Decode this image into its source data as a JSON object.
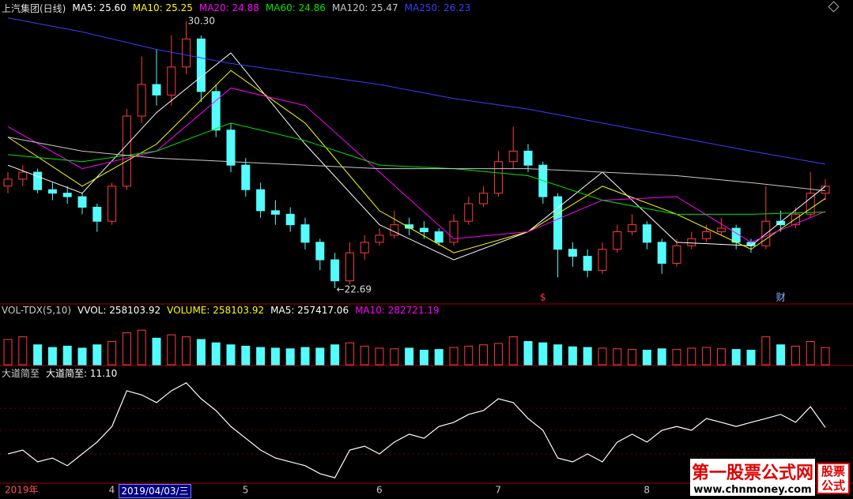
{
  "chart_data": [
    {
      "type": "candlestick",
      "title": "上汽集团(日线)",
      "categories": [
        "2019年",
        null,
        null,
        null,
        null,
        null,
        null,
        "4",
        null,
        null,
        null,
        null,
        null,
        null,
        null,
        null,
        "5",
        null,
        null,
        null,
        null,
        null,
        null,
        null,
        null,
        "6",
        null,
        null,
        null,
        null,
        null,
        null,
        null,
        "7",
        null,
        null,
        null,
        null,
        null,
        null,
        null,
        null,
        null,
        "8",
        null,
        null,
        null,
        null,
        null,
        null,
        null,
        null,
        null,
        null,
        null,
        null
      ],
      "cursor": {
        "x": 9,
        "label": "2019/04/03/三"
      },
      "open": [
        25.6,
        25.8,
        26.0,
        25.5,
        25.4,
        25.3,
        25.0,
        24.6,
        25.6,
        27.6,
        28.5,
        28.2,
        29.0,
        29.8,
        28.3,
        27.2,
        26.2,
        25.5,
        24.9,
        24.8,
        24.5,
        24.0,
        23.5,
        22.9,
        23.7,
        24.0,
        24.2,
        24.5,
        24.4,
        24.3,
        24.0,
        24.6,
        25.1,
        25.4,
        26.3,
        26.6,
        26.2,
        25.3,
        23.8,
        23.6,
        23.2,
        23.8,
        24.3,
        24.5,
        24.0,
        23.4,
        23.9,
        24.1,
        24.3,
        24.4,
        24.0,
        23.9,
        24.6,
        24.5,
        24.8,
        25.4
      ],
      "high": [
        26.0,
        26.2,
        26.1,
        25.7,
        25.6,
        25.4,
        25.1,
        25.7,
        27.8,
        29.3,
        29.5,
        29.9,
        30.3,
        29.9,
        28.5,
        27.4,
        26.4,
        25.7,
        25.2,
        25.0,
        24.7,
        24.1,
        23.7,
        24.0,
        24.2,
        24.4,
        24.9,
        24.7,
        24.6,
        24.4,
        24.8,
        25.3,
        25.6,
        26.6,
        27.3,
        26.8,
        26.3,
        25.4,
        24.0,
        23.8,
        24.0,
        24.5,
        24.8,
        24.6,
        24.1,
        24.1,
        24.3,
        24.5,
        24.7,
        24.5,
        24.1,
        25.6,
        24.9,
        25.0,
        26.0,
        25.8
      ],
      "low": [
        25.4,
        25.6,
        25.4,
        25.2,
        25.1,
        24.8,
        24.3,
        24.5,
        25.5,
        27.4,
        27.9,
        27.9,
        28.8,
        28.0,
        27.0,
        26.0,
        25.3,
        24.7,
        24.5,
        24.3,
        23.8,
        23.2,
        22.69,
        22.8,
        23.5,
        23.9,
        24.1,
        24.2,
        24.1,
        23.9,
        23.9,
        24.5,
        25.0,
        25.3,
        26.1,
        26.0,
        25.1,
        23.0,
        23.3,
        23.0,
        23.1,
        23.7,
        24.2,
        23.8,
        23.1,
        23.3,
        23.8,
        24.0,
        24.2,
        23.8,
        23.7,
        23.8,
        24.3,
        24.4,
        24.7,
        25.2
      ],
      "close": [
        25.8,
        26.0,
        25.5,
        25.4,
        25.3,
        25.0,
        24.6,
        25.6,
        27.6,
        28.5,
        28.2,
        29.0,
        29.8,
        28.3,
        27.2,
        26.2,
        25.5,
        24.9,
        24.8,
        24.5,
        24.0,
        23.5,
        22.9,
        23.7,
        24.0,
        24.2,
        24.5,
        24.4,
        24.3,
        24.0,
        24.6,
        25.1,
        25.4,
        26.3,
        26.6,
        26.2,
        25.3,
        23.8,
        23.6,
        23.2,
        23.8,
        24.3,
        24.5,
        24.0,
        23.4,
        23.9,
        24.1,
        24.3,
        24.4,
        24.0,
        23.9,
        24.6,
        24.5,
        24.8,
        25.4,
        25.6
      ],
      "up_color": "#ff3c3c",
      "down_color": "#54fcfc",
      "ylim": [
        22.24,
        30.46
      ],
      "annotations": {
        "max_label": "30.30",
        "min_label": "←22.69"
      },
      "event_markers": [
        {
          "x": 37,
          "text": "$",
          "color": "#ff3c3c"
        },
        {
          "x": 53,
          "text": "财",
          "color": "#8cb4ff"
        }
      ],
      "lines": [
        {
          "label": "MA5: 25.60",
          "color": "#ffffff",
          "x": [
            1,
            6,
            11,
            16,
            21,
            26,
            31,
            36,
            41,
            46,
            51,
            56
          ],
          "values": [
            26.2,
            25.4,
            27.7,
            29.4,
            26.8,
            24.5,
            23.5,
            24.3,
            26.0,
            24.0,
            23.9,
            25.6
          ]
        },
        {
          "label": "MA10: 25.25",
          "color": "#ffff00",
          "x": [
            1,
            6,
            11,
            16,
            21,
            26,
            31,
            36,
            41,
            46,
            51,
            56
          ],
          "values": [
            27.0,
            25.6,
            26.8,
            28.9,
            27.4,
            24.9,
            23.7,
            24.3,
            25.6,
            24.8,
            23.8,
            25.25
          ]
        },
        {
          "label": "MA20: 24.88",
          "color": "#ff00ff",
          "x": [
            1,
            6,
            11,
            16,
            21,
            26,
            31,
            36,
            41,
            46,
            51,
            56
          ],
          "values": [
            27.3,
            26.1,
            26.6,
            28.4,
            27.9,
            26.0,
            24.1,
            24.3,
            25.2,
            25.3,
            24.0,
            24.88
          ]
        },
        {
          "label": "MA60: 24.86",
          "color": "#00e600",
          "x": [
            1,
            6,
            11,
            16,
            21,
            26,
            31,
            36,
            41,
            46,
            51,
            56
          ],
          "values": [
            26.5,
            26.3,
            26.6,
            27.4,
            26.9,
            26.2,
            26.1,
            25.9,
            25.2,
            24.8,
            24.8,
            24.86
          ]
        },
        {
          "label": "MA120: 25.47",
          "color": "#c8c8c8",
          "x": [
            1,
            6,
            11,
            16,
            21,
            26,
            31,
            36,
            41,
            46,
            51,
            56
          ],
          "values": [
            27.0,
            26.6,
            26.4,
            26.3,
            26.2,
            26.1,
            26.1,
            26.1,
            26.0,
            25.9,
            25.7,
            25.47
          ]
        },
        {
          "label": "MA250: 26.23",
          "color": "#3c3cff",
          "x": [
            1,
            6,
            11,
            16,
            21,
            26,
            31,
            36,
            41,
            46,
            51,
            56
          ],
          "values": [
            30.4,
            30.0,
            29.5,
            29.1,
            28.8,
            28.5,
            28.1,
            27.8,
            27.4,
            27.0,
            26.6,
            26.23
          ]
        }
      ]
    },
    {
      "type": "bar",
      "title": "VOL-TDX(5,10)",
      "legend": [
        {
          "text": "VVOL: 258103.92",
          "color": "#ffffff"
        },
        {
          "text": "VOLUME: 258103.92",
          "color": "#ffff00"
        },
        {
          "text": "MA5: 257417.06",
          "color": "#ffffff"
        },
        {
          "text": "MA10: 282721.19",
          "color": "#ff00ff"
        }
      ],
      "values": [
        380000,
        420000,
        300000,
        260000,
        280000,
        250000,
        300000,
        350000,
        480000,
        520000,
        400000,
        450000,
        420000,
        380000,
        330000,
        300000,
        280000,
        260000,
        250000,
        240000,
        260000,
        250000,
        300000,
        330000,
        280000,
        250000,
        240000,
        250000,
        220000,
        230000,
        260000,
        280000,
        300000,
        320000,
        420000,
        350000,
        330000,
        300000,
        270000,
        260000,
        250000,
        240000,
        230000,
        220000,
        240000,
        230000,
        250000,
        260000,
        240000,
        230000,
        220000,
        420000,
        300000,
        280000,
        350000,
        258103.92
      ],
      "ylim": [
        0,
        700000
      ]
    },
    {
      "type": "line",
      "title": "大道简至",
      "legend": [
        {
          "text": "大道简至: 11.10",
          "color": "#ffffff"
        }
      ],
      "color": "#ffffff",
      "values": [
        0.8,
        2.3,
        -2.3,
        -0.8,
        -3.8,
        0.8,
        5.4,
        11.5,
        25.4,
        23.8,
        20.8,
        25.4,
        28.5,
        22.3,
        17.7,
        11.5,
        6.9,
        2.3,
        -0.8,
        -2.3,
        -3.8,
        -6.9,
        -8.5,
        2.3,
        3.8,
        0.8,
        5.4,
        8.5,
        6.9,
        11.5,
        13.1,
        16.2,
        17.7,
        22.3,
        20.8,
        14.6,
        10.0,
        -0.8,
        -2.3,
        0.8,
        -2.3,
        5.4,
        8.5,
        5.4,
        10.0,
        11.5,
        10.0,
        14.6,
        13.1,
        11.5,
        13.1,
        14.6,
        16.2,
        13.1,
        19.2,
        11.1
      ],
      "ylim": [
        -10,
        30
      ]
    }
  ],
  "watermark": {
    "name": "第一股票公式网",
    "url": "www.chnmoney.com",
    "badge": [
      "股票",
      "公式"
    ]
  }
}
